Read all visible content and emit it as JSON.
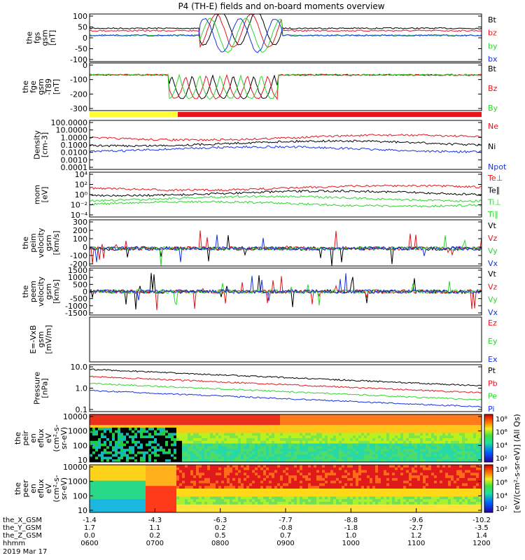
{
  "title": "P4 (TH-E) fields and on-board moments overview",
  "colors": {
    "black": "#000000",
    "red": "#e8141c",
    "green": "#2bd62b",
    "blue": "#1432e6",
    "yellow": "#ffff33"
  },
  "chart_data": [
    {
      "type": "line",
      "ylabel_lines": [
        "the",
        "fgs",
        "gsm",
        "[nT]"
      ],
      "yticks": [
        "100",
        "50",
        "0",
        "-50",
        "-100"
      ],
      "ylim": [
        -100,
        100
      ],
      "legend": [
        {
          "label": "Bt",
          "color": "black"
        },
        {
          "label": "bz",
          "color": "red"
        },
        {
          "label": "by",
          "color": "green"
        },
        {
          "label": "bx",
          "color": "blue"
        }
      ]
    },
    {
      "type": "line",
      "ylabel_lines": [
        "the",
        "fge",
        "gsm",
        "-T89",
        "[nT]"
      ],
      "yticks": [
        "0",
        "-100",
        "-200",
        "-300"
      ],
      "ylim": [
        -330,
        40
      ],
      "legend": [
        {
          "label": "Bt",
          "color": "black"
        },
        {
          "label": "Bz",
          "color": "red"
        },
        {
          "label": "By",
          "color": "green"
        }
      ]
    },
    {
      "type": "line",
      "ylabel_lines": [
        "Density",
        "[cm-3]"
      ],
      "yticks": [
        "100.0000",
        "10.0000",
        "1.0000",
        "0.1000",
        "0.0100",
        "0.0010",
        "0.0001"
      ],
      "scale": "log",
      "legend": [
        {
          "label": "Ne",
          "color": "red"
        },
        {
          "label": "Ni",
          "color": "black"
        },
        {
          "label": "Npot",
          "color": "blue"
        }
      ]
    },
    {
      "type": "line",
      "ylabel_lines": [
        "mom",
        "[eV]"
      ],
      "yticks": [
        "10⁴",
        "10²",
        "10⁰",
        "10⁻²",
        "10⁻⁴"
      ],
      "scale": "log",
      "legend": [
        {
          "label": "Te⊥",
          "color": "red"
        },
        {
          "label": "Te∥",
          "color": "black"
        },
        {
          "label": "Ti⊥",
          "color": "green"
        },
        {
          "label": "Ti∥",
          "color": "green"
        }
      ]
    },
    {
      "type": "line",
      "ylabel_lines": [
        "the",
        "peim",
        "velocity",
        "gsm",
        "[km/s]"
      ],
      "yticks": [
        "300",
        "200",
        "100",
        "0",
        "-100",
        "-200"
      ],
      "ylim": [
        -200,
        300
      ],
      "legend": [
        {
          "label": "Vt",
          "color": "black"
        },
        {
          "label": "Vz",
          "color": "red"
        },
        {
          "label": "Vy",
          "color": "green"
        },
        {
          "label": "Vx",
          "color": "blue"
        }
      ]
    },
    {
      "type": "line",
      "ylabel_lines": [
        "the",
        "peem",
        "velocity",
        "gsm",
        "[km/s]"
      ],
      "yticks": [
        "1500",
        "1000",
        "500",
        "0",
        "-500",
        "-1000",
        "-1500"
      ],
      "ylim": [
        -1500,
        1500
      ],
      "legend": [
        {
          "label": "Vt",
          "color": "black"
        },
        {
          "label": "Vz",
          "color": "red"
        },
        {
          "label": "Vy",
          "color": "green"
        },
        {
          "label": "Vx",
          "color": "blue"
        }
      ]
    },
    {
      "type": "line",
      "ylabel_lines": [
        "E=-VxB",
        "gsm",
        "[mV/m]"
      ],
      "yticks": [],
      "legend": [
        {
          "label": "Ez",
          "color": "red"
        },
        {
          "label": "Ey",
          "color": "green"
        },
        {
          "label": "Ex",
          "color": "blue"
        }
      ]
    },
    {
      "type": "line",
      "ylabel_lines": [
        "Pressure",
        "[nPa]"
      ],
      "yticks": [
        "10.0",
        "1.0",
        "0.1"
      ],
      "scale": "log",
      "legend": [
        {
          "label": "Pt",
          "color": "black"
        },
        {
          "label": "Pb",
          "color": "red"
        },
        {
          "label": "Pe",
          "color": "green"
        },
        {
          "label": "Pi",
          "color": "blue"
        }
      ]
    },
    {
      "type": "heatmap",
      "ylabel_lines": [
        "the",
        "peir",
        "en",
        "eflux",
        "eV",
        "(cm²-s-",
        "sr-eV)"
      ],
      "yticks": [
        "10000",
        "1000",
        "100",
        "10"
      ],
      "scale": "log"
    },
    {
      "type": "heatmap",
      "ylabel_lines": [
        "the",
        "peer",
        "en",
        "eflux",
        "eV",
        "(cm²-s-",
        "sr-eV)"
      ],
      "yticks": [
        "10000",
        "1000",
        "100",
        "10"
      ],
      "scale": "log"
    }
  ],
  "colorbars": [
    {
      "ticks": [
        "10⁸",
        "10⁶",
        "10⁴",
        "10²"
      ]
    },
    {
      "ticks": [
        "10⁸",
        "10⁶",
        "10⁴",
        "10²"
      ]
    }
  ],
  "colorbar_label": "[eV/(cm²-s-sr-eV)] (All Qs)",
  "x_axis": {
    "rows": [
      {
        "name": "the_X_GSM",
        "values": [
          "-1.4",
          "-4.3",
          "-6.3",
          "-7.7",
          "-8.8",
          "-9.6",
          "-10.2"
        ]
      },
      {
        "name": "the_Y_GSM",
        "values": [
          "1.7",
          "1.1",
          "0.2",
          "-0.8",
          "-1.8",
          "-2.7",
          "-3.5"
        ]
      },
      {
        "name": "the_Z_GSM",
        "values": [
          "0.0",
          "0.2",
          "0.5",
          "0.7",
          "1.0",
          "1.2",
          "1.4"
        ]
      },
      {
        "name": "hhmm",
        "values": [
          "0600",
          "0700",
          "0800",
          "0900",
          "1000",
          "1100",
          "1200"
        ]
      }
    ],
    "date": "2019 Mar 17"
  }
}
